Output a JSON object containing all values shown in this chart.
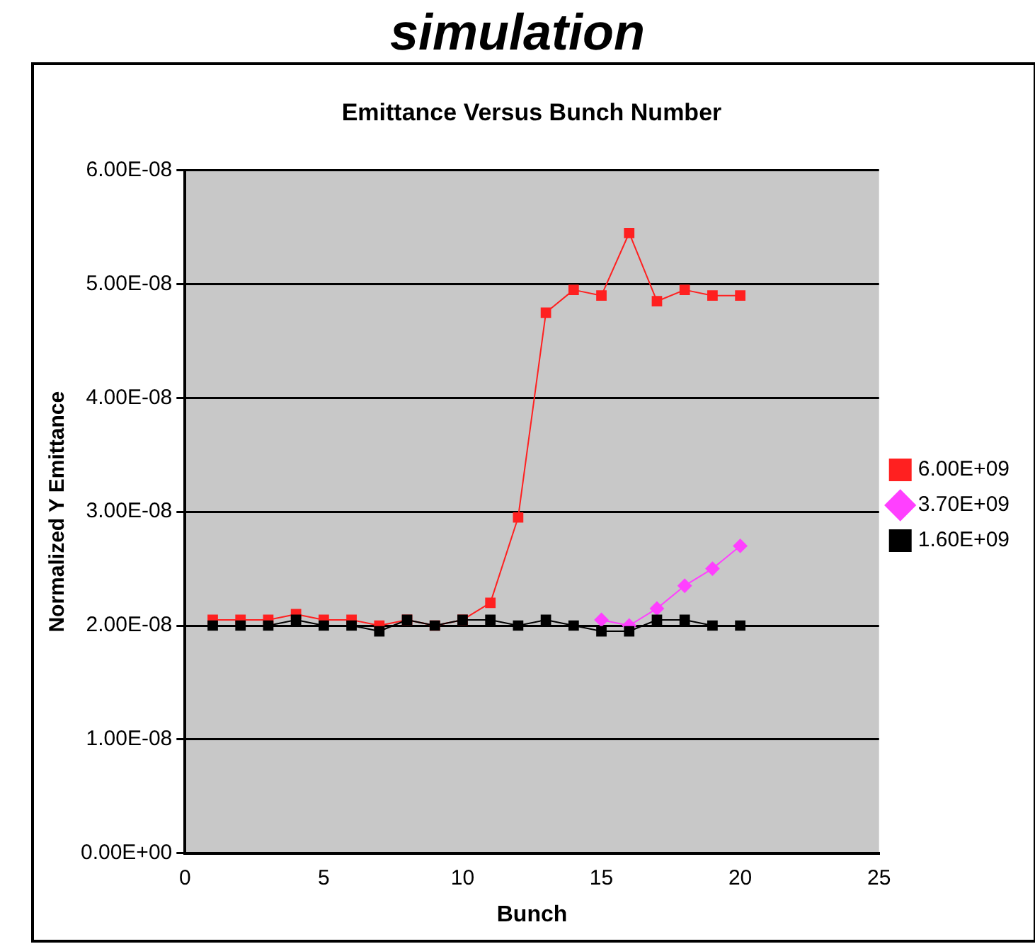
{
  "chart_data": {
    "type": "line",
    "title": "simulation",
    "subtitle": "Emittance Versus Bunch Number",
    "xlabel": "Bunch",
    "ylabel": "Normalized Y Emittance",
    "x": [
      1,
      2,
      3,
      4,
      5,
      6,
      7,
      8,
      9,
      10,
      11,
      12,
      13,
      14,
      15,
      16,
      17,
      18,
      19,
      20
    ],
    "xlim": [
      0,
      25
    ],
    "xticks": [
      0,
      5,
      10,
      15,
      20,
      25
    ],
    "ylim": [
      0,
      6e-08
    ],
    "yticks": [
      {
        "value": 0,
        "label": "0.00E+00"
      },
      {
        "value": 1e-08,
        "label": "1.00E-08"
      },
      {
        "value": 2e-08,
        "label": "2.00E-08"
      },
      {
        "value": 3e-08,
        "label": "3.00E-08"
      },
      {
        "value": 4e-08,
        "label": "4.00E-08"
      },
      {
        "value": 5e-08,
        "label": "5.00E-08"
      },
      {
        "value": 6e-08,
        "label": "6.00E-08"
      }
    ],
    "grid": "y",
    "legend": "right",
    "series": [
      {
        "name": "6.00E+09",
        "color": "#ff2020",
        "marker": "square",
        "values": [
          2.05e-08,
          2.05e-08,
          2.05e-08,
          2.1e-08,
          2.05e-08,
          2.05e-08,
          2e-08,
          2.05e-08,
          2e-08,
          2.05e-08,
          2.2e-08,
          2.95e-08,
          4.75e-08,
          4.95e-08,
          4.9e-08,
          5.45e-08,
          4.85e-08,
          4.95e-08,
          4.9e-08,
          4.9e-08
        ]
      },
      {
        "name": "3.70E+09",
        "color": "#ff40ff",
        "marker": "diamond",
        "values": [
          null,
          null,
          null,
          null,
          null,
          null,
          null,
          null,
          null,
          null,
          null,
          null,
          null,
          null,
          2.05e-08,
          2e-08,
          2.15e-08,
          2.35e-08,
          2.5e-08,
          2.7e-08
        ]
      },
      {
        "name": "1.60E+09",
        "color": "#000000",
        "marker": "square",
        "values": [
          2e-08,
          2e-08,
          2e-08,
          2.05e-08,
          2e-08,
          2e-08,
          1.95e-08,
          2.05e-08,
          2e-08,
          2.05e-08,
          2.05e-08,
          2e-08,
          2.05e-08,
          2e-08,
          1.95e-08,
          1.95e-08,
          2.05e-08,
          2.05e-08,
          2e-08,
          2e-08
        ]
      }
    ]
  }
}
